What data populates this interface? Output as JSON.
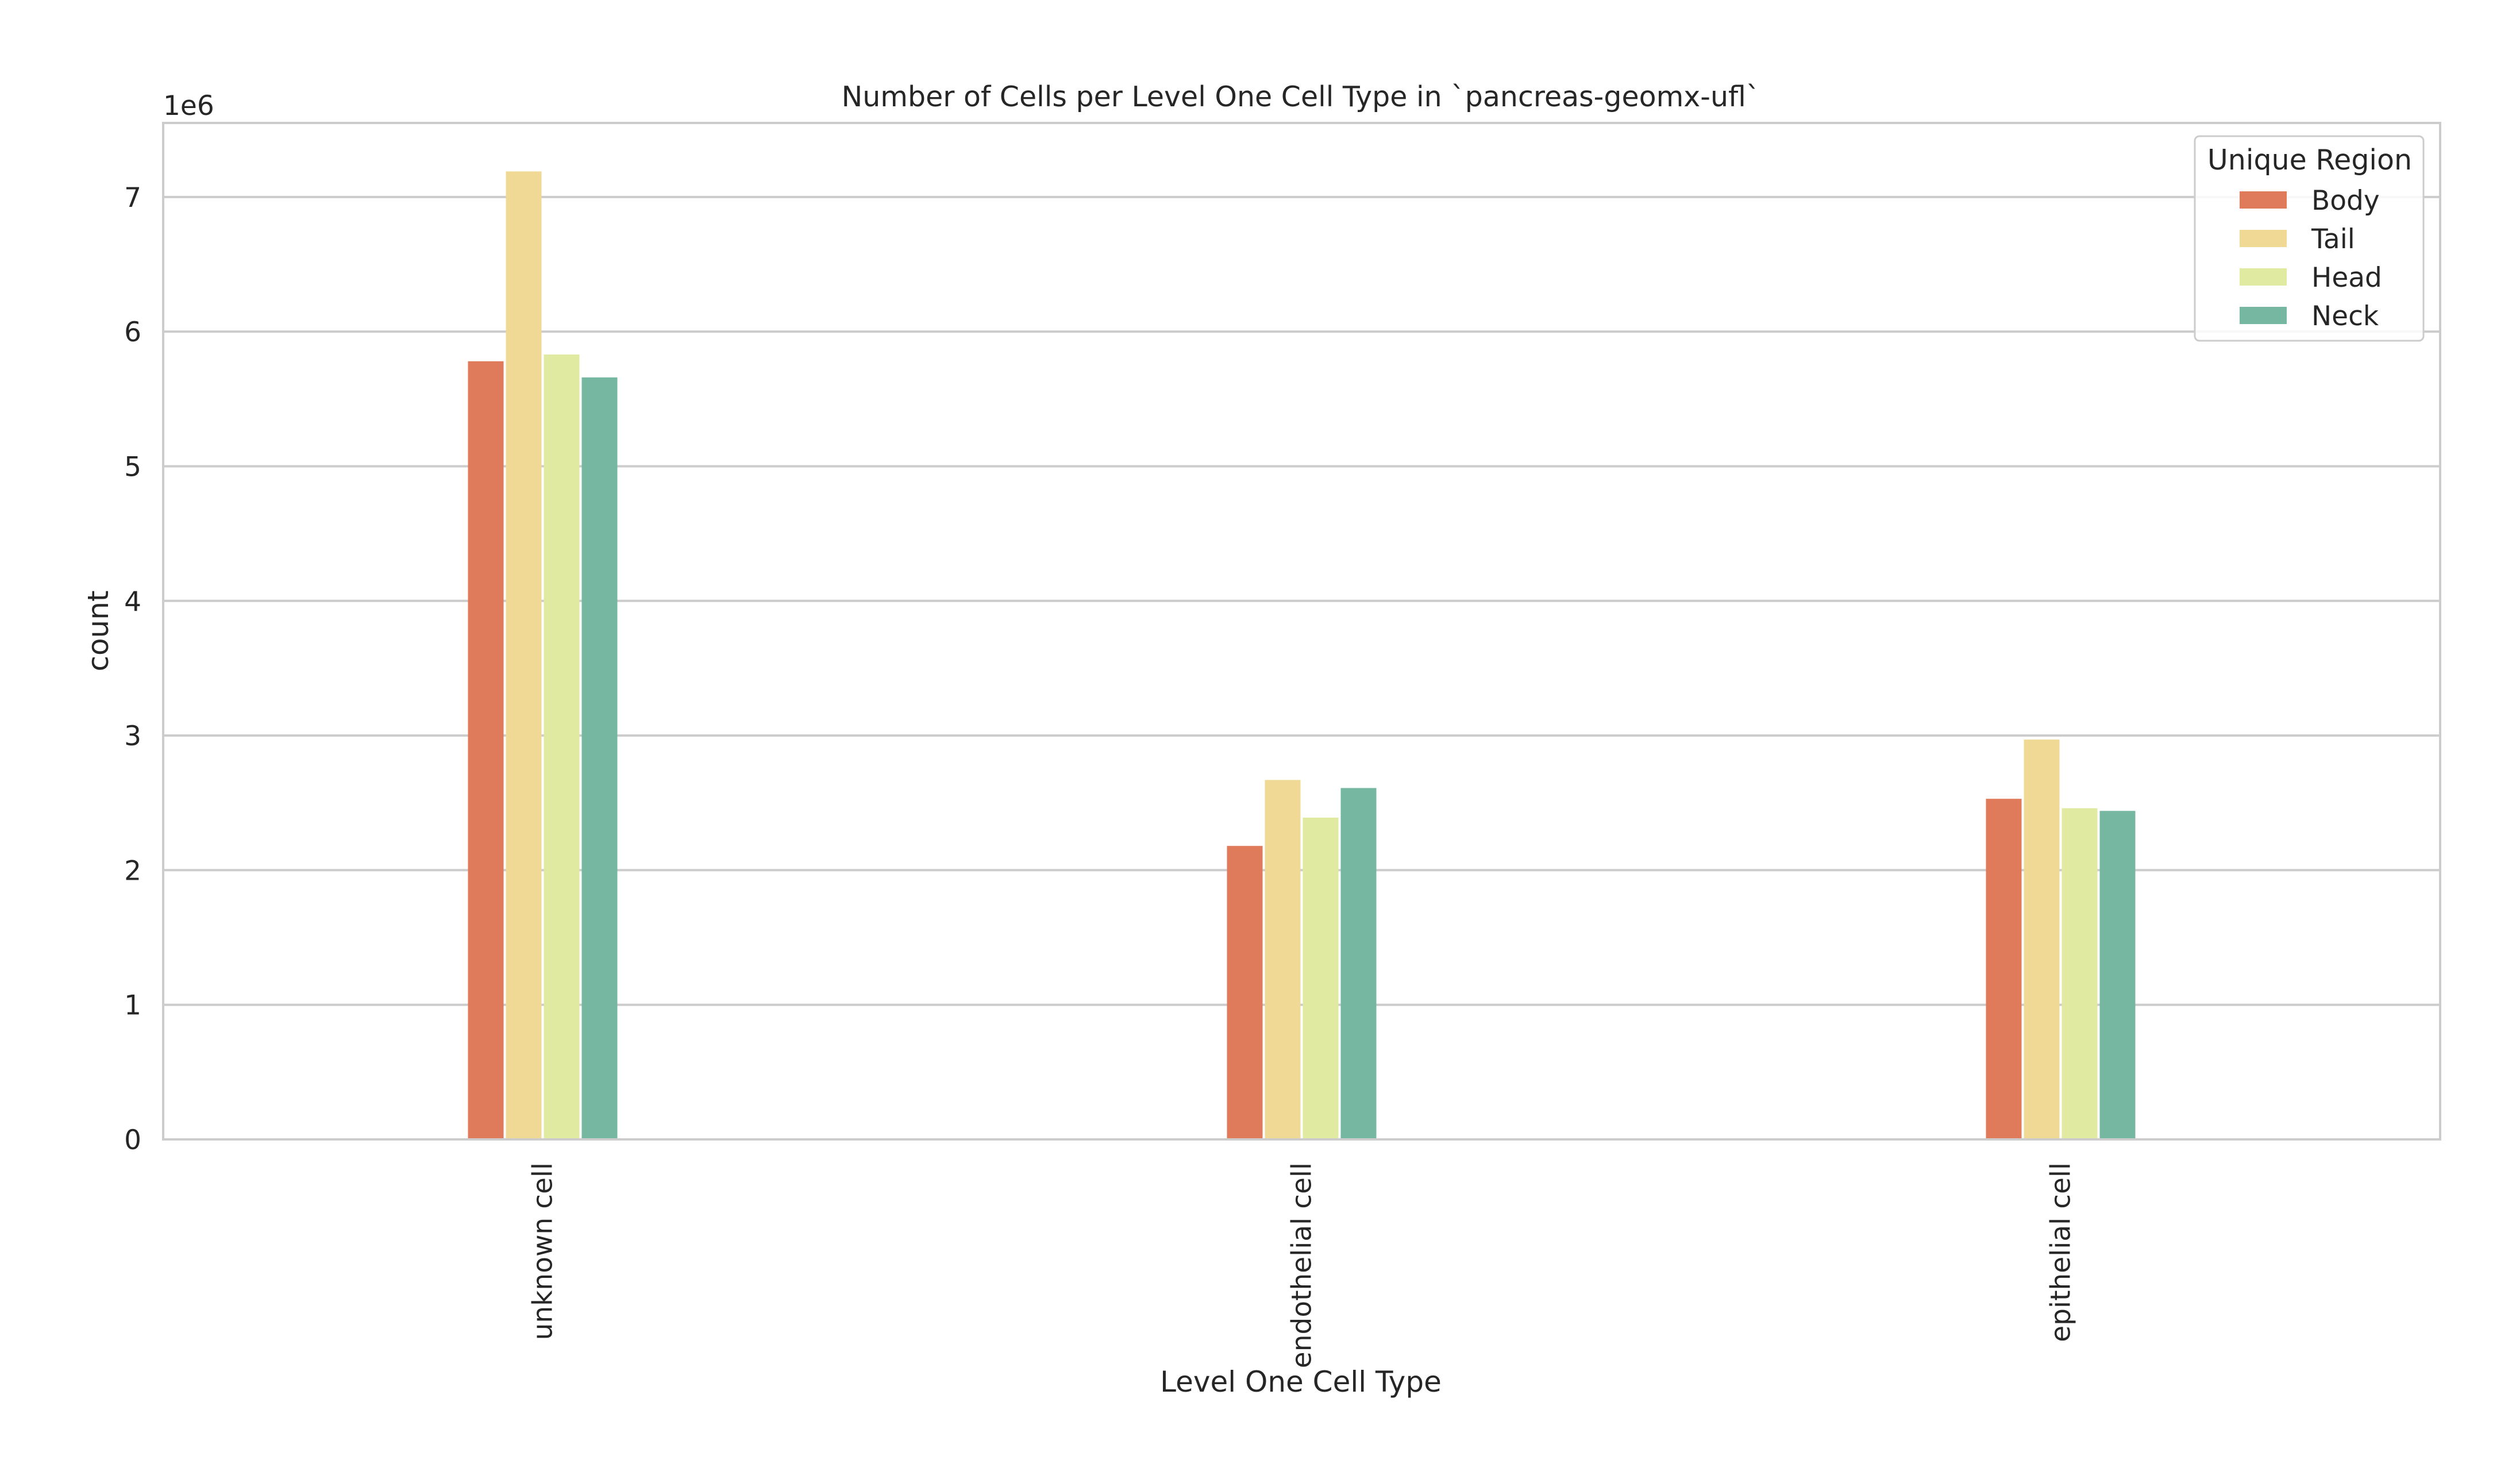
{
  "chart_data": {
    "type": "bar",
    "title": "Number of Cells per Level One Cell Type in `pancreas-geomx-ufl`",
    "xlabel": "Level One Cell Type",
    "ylabel": "count",
    "y_offset_label": "1e6",
    "categories": [
      "unknown cell",
      "endothelial cell",
      "epithelial cell"
    ],
    "series": [
      {
        "name": "Body",
        "color": "#df7a5b",
        "values": [
          5780000,
          2180000,
          2530000
        ]
      },
      {
        "name": "Tail",
        "color": "#f0d895",
        "values": [
          7190000,
          2670000,
          2970000
        ]
      },
      {
        "name": "Head",
        "color": "#e0eba1",
        "values": [
          5830000,
          2390000,
          2460000
        ]
      },
      {
        "name": "Neck",
        "color": "#75b7a0",
        "values": [
          5660000,
          2610000,
          2440000
        ]
      }
    ],
    "ylim": [
      0,
      7550000
    ],
    "yticks": [
      0,
      1,
      2,
      3,
      4,
      5,
      6,
      7
    ],
    "ytick_scale": 1000000,
    "grid": "horizontal",
    "legend": {
      "title": "Unique Region",
      "position": "top-right"
    }
  }
}
